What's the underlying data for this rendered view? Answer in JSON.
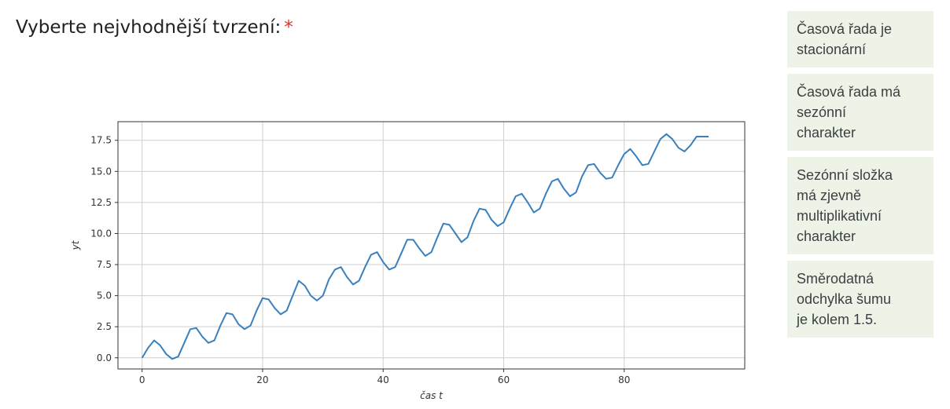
{
  "question": {
    "text": "Vyberte nejvhodnější tvrzení:",
    "required_mark": "*"
  },
  "options": [
    {
      "label": "Časová řada je\nstacionární"
    },
    {
      "label": "Časová řada má\nsezónní\ncharakter"
    },
    {
      "label": "Sezónní složka\nmá zjevně\nmultiplikativní\ncharakter"
    },
    {
      "label": "Směrodatná\nodchylka šumu\nje kolem 1.5."
    }
  ],
  "colors": {
    "option_bg": "#eef3e7",
    "line": "#3a80bd",
    "required": "#d93025"
  },
  "chart_data": {
    "type": "line",
    "xlabel": "čas t",
    "ylabel": "yt",
    "xlim": [
      -4,
      100
    ],
    "ylim": [
      -0.9,
      19.0
    ],
    "xticks": [
      0,
      20,
      40,
      60,
      80
    ],
    "yticks": [
      0.0,
      2.5,
      5.0,
      7.5,
      10.0,
      12.5,
      15.0,
      17.5
    ],
    "grid": true,
    "series": [
      {
        "x": [
          0,
          1,
          2,
          3,
          4,
          5,
          6,
          7,
          8,
          9,
          10,
          11,
          12,
          13,
          14,
          15,
          16,
          17,
          18,
          19,
          20,
          21,
          22,
          23,
          24,
          25,
          26,
          27,
          28,
          29,
          30,
          31,
          32,
          33,
          34,
          35,
          36,
          37,
          38,
          39,
          40,
          41,
          42,
          43,
          44,
          45,
          46,
          47,
          48,
          49,
          50,
          51,
          52,
          53,
          54,
          55,
          56,
          57,
          58,
          59,
          60,
          61,
          62,
          63,
          64,
          65,
          66,
          67,
          68,
          69,
          70,
          71,
          72,
          73,
          74,
          75,
          76,
          77,
          78,
          79,
          80,
          81,
          82,
          83,
          84,
          85,
          86,
          87,
          88,
          89,
          90,
          91,
          92,
          93,
          94
        ],
        "values": [
          0.0,
          0.8,
          1.4,
          1.0,
          0.3,
          -0.1,
          0.1,
          1.2,
          2.3,
          2.4,
          1.7,
          1.2,
          1.4,
          2.6,
          3.6,
          3.5,
          2.7,
          2.3,
          2.6,
          3.8,
          4.8,
          4.7,
          4.0,
          3.5,
          3.8,
          5.0,
          6.2,
          5.8,
          5.0,
          4.6,
          5.0,
          6.3,
          7.1,
          7.3,
          6.5,
          5.9,
          6.2,
          7.3,
          8.3,
          8.5,
          7.7,
          7.1,
          7.3,
          8.4,
          9.5,
          9.5,
          8.8,
          8.2,
          8.5,
          9.7,
          10.8,
          10.7,
          10.0,
          9.3,
          9.7,
          11.0,
          12.0,
          11.9,
          11.1,
          10.6,
          10.9,
          12.0,
          13.0,
          13.2,
          12.5,
          11.7,
          12.0,
          13.2,
          14.2,
          14.4,
          13.6,
          13.0,
          13.3,
          14.6,
          15.5,
          15.6,
          14.9,
          14.4,
          14.5,
          15.5,
          16.4,
          16.8,
          16.2,
          15.5,
          15.6,
          16.6,
          17.6,
          18.0,
          17.6,
          16.9,
          16.6,
          17.1,
          17.8,
          17.8,
          17.8
        ]
      }
    ]
  }
}
